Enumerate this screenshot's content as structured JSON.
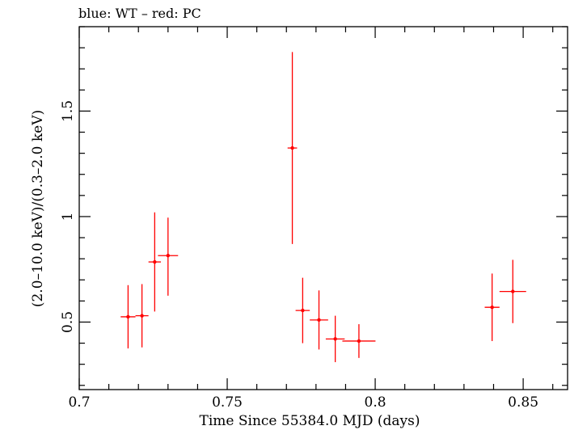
{
  "chart_data": {
    "type": "scatter",
    "title": "blue: WT – red: PC",
    "xlabel": "Time Since 55384.0 MJD (days)",
    "ylabel": "(2.0–10.0 keV)/(0.3–2.0 keV)",
    "xlim": [
      0.7,
      0.865
    ],
    "ylim": [
      0.18,
      1.9
    ],
    "x_ticks": [
      {
        "value": 0.7,
        "label": "0.7"
      },
      {
        "value": 0.75,
        "label": "0.75"
      },
      {
        "value": 0.8,
        "label": "0.8"
      },
      {
        "value": 0.85,
        "label": "0.85"
      }
    ],
    "y_ticks": [
      {
        "value": 0.5,
        "label": "0.5"
      },
      {
        "value": 1.0,
        "label": "1"
      },
      {
        "value": 1.5,
        "label": "1.5"
      }
    ],
    "grid": false,
    "series": [
      {
        "color": "#ff0000",
        "points": [
          {
            "x": 0.7165,
            "xerr": 0.0025,
            "y": 0.525,
            "yerr_low": 0.15,
            "yerr_high": 0.15
          },
          {
            "x": 0.7212,
            "xerr": 0.0022,
            "y": 0.53,
            "yerr_low": 0.15,
            "yerr_high": 0.15
          },
          {
            "x": 0.7255,
            "xerr": 0.0021,
            "y": 0.785,
            "yerr_low": 0.235,
            "yerr_high": 0.235
          },
          {
            "x": 0.73,
            "xerr": 0.0034,
            "y": 0.815,
            "yerr_low": 0.19,
            "yerr_high": 0.18
          },
          {
            "x": 0.772,
            "xerr": 0.0016,
            "y": 1.325,
            "yerr_low": 0.455,
            "yerr_high": 0.455
          },
          {
            "x": 0.7755,
            "xerr": 0.0024,
            "y": 0.555,
            "yerr_low": 0.155,
            "yerr_high": 0.155
          },
          {
            "x": 0.781,
            "xerr": 0.0031,
            "y": 0.51,
            "yerr_low": 0.14,
            "yerr_high": 0.14
          },
          {
            "x": 0.7865,
            "xerr": 0.0032,
            "y": 0.42,
            "yerr_low": 0.11,
            "yerr_high": 0.11
          },
          {
            "x": 0.7945,
            "xerr": 0.0056,
            "y": 0.41,
            "yerr_low": 0.08,
            "yerr_high": 0.08
          },
          {
            "x": 0.8395,
            "xerr": 0.0025,
            "y": 0.57,
            "yerr_low": 0.16,
            "yerr_high": 0.16
          },
          {
            "x": 0.8465,
            "xerr": 0.0045,
            "y": 0.645,
            "yerr_low": 0.15,
            "yerr_high": 0.15
          }
        ]
      }
    ]
  }
}
